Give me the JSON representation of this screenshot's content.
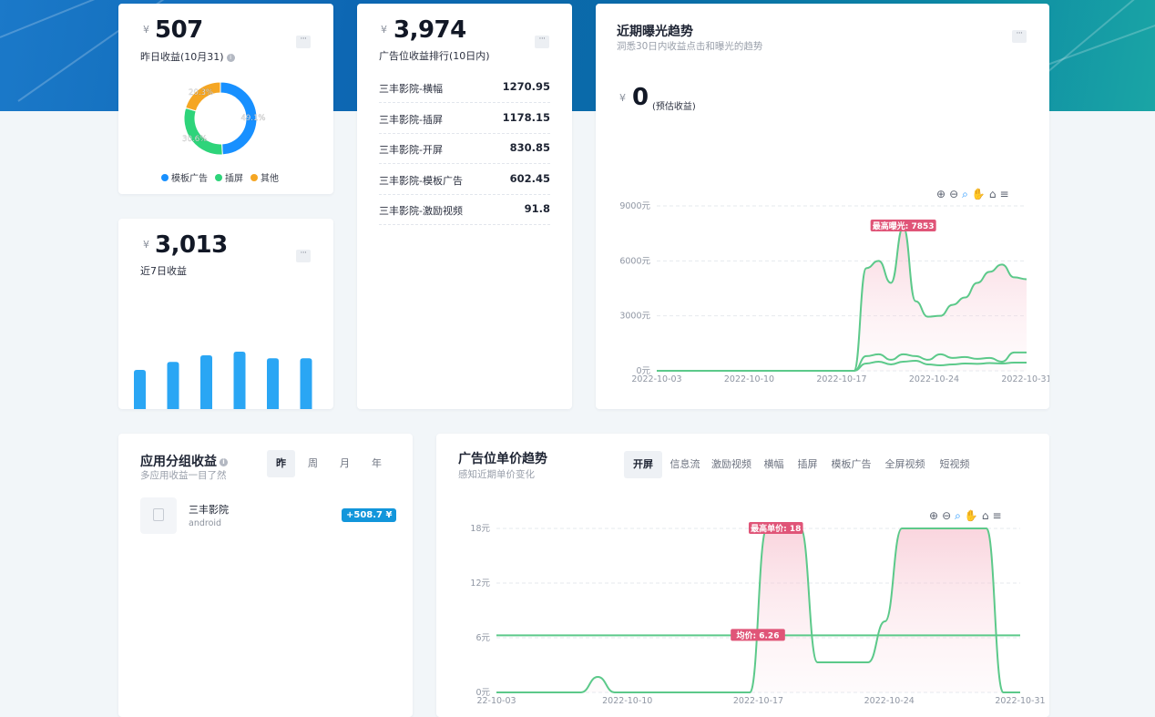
{
  "yesterday": {
    "currency": "¥",
    "amount": "507",
    "label": "昨日收益(10月31)",
    "more": "···",
    "donut": [
      {
        "name": "模板广告",
        "percent": 49.1,
        "label": "49.1%",
        "color": "#1890ff"
      },
      {
        "name": "插屏",
        "percent": 30.6,
        "label": "30.6%",
        "color": "#2ed47a"
      },
      {
        "name": "其他",
        "percent": 20.3,
        "label": "20.3%",
        "color": "#f5a623"
      }
    ]
  },
  "week": {
    "currency": "¥",
    "amount": "3,013",
    "label": "近7日收益",
    "more": "···",
    "bar_heights": [
      0.55,
      0.66,
      0.75,
      0.8,
      0.71,
      0.71
    ],
    "bar_color": "#2aa6f4"
  },
  "ranking": {
    "currency": "¥",
    "amount": "3,974",
    "label": "广告位收益排行(10日内)",
    "more": "···",
    "rows": [
      {
        "name": "三丰影院-横幅",
        "value": "1270.95"
      },
      {
        "name": "三丰影院-插屏",
        "value": "1178.15"
      },
      {
        "name": "三丰影院-开屏",
        "value": "830.85"
      },
      {
        "name": "三丰影院-模板广告",
        "value": "602.45"
      },
      {
        "name": "三丰影院-激励视频",
        "value": "91.8"
      }
    ]
  },
  "exposure": {
    "title": "近期曝光趋势",
    "desc": "洞悉30日内收益点击和曝光的趋势",
    "more": "···",
    "currency": "¥",
    "amount": "0",
    "amount_note": "(预估收益)",
    "toolbar": [
      "⊕",
      "⊖",
      "🔍",
      "✋",
      "⌂",
      "≡"
    ],
    "chart_data": {
      "type": "line",
      "yticks": [
        "9000元",
        "6000元",
        "3000元",
        "0元"
      ],
      "ylim": [
        0,
        9000
      ],
      "xticks": [
        "2022-10-03",
        "2022-10-10",
        "2022-10-17",
        "2022-10-24",
        "2022-10-31"
      ],
      "marker": "最高曝光: 7853",
      "series": [
        {
          "values": [
            0,
            0,
            0,
            0,
            0,
            0,
            0,
            0,
            0,
            0,
            0,
            0,
            0,
            0,
            0,
            0,
            0,
            5600,
            6000,
            4800,
            7853,
            3800,
            2950,
            3000,
            3600,
            4000,
            4800,
            5400,
            5800,
            5100,
            5000
          ]
        },
        {
          "values": [
            0,
            0,
            0,
            0,
            0,
            0,
            0,
            0,
            0,
            0,
            0,
            0,
            0,
            0,
            0,
            0,
            0,
            800,
            900,
            600,
            900,
            800,
            600,
            900,
            700,
            750,
            650,
            700,
            500,
            1000,
            1000
          ]
        },
        {
          "values": [
            0,
            0,
            0,
            0,
            0,
            0,
            0,
            0,
            0,
            0,
            0,
            0,
            0,
            0,
            0,
            0,
            0,
            400,
            500,
            350,
            500,
            550,
            350,
            300,
            350,
            400,
            380,
            420,
            400,
            450,
            450
          ]
        }
      ],
      "line_color": "#5cc98a"
    }
  },
  "app_group": {
    "title": "应用分组收益",
    "desc": "多应用收益一目了然",
    "tabs": [
      "昨",
      "周",
      "月",
      "年"
    ],
    "active_tab": 0,
    "app": {
      "name": "三丰影院",
      "platform": "android",
      "badge": "+508.7 ¥"
    }
  },
  "unit_price": {
    "title": "广告位单价趋势",
    "desc": "感知近期单价变化",
    "tabs": [
      "开屏",
      "信息流",
      "激励视频",
      "横幅",
      "插屏",
      "模板广告",
      "全屏视频",
      "短视频"
    ],
    "active_tab": 0,
    "toolbar": [
      "⊕",
      "⊖",
      "🔍",
      "✋",
      "⌂",
      "≡"
    ],
    "chart_data": {
      "type": "line",
      "yticks": [
        "18元",
        "12元",
        "6元",
        "0元"
      ],
      "ylim": [
        0,
        18
      ],
      "xticks": [
        "22-10-03",
        "2022-10-10",
        "2022-10-17",
        "2022-10-24",
        "2022-10-31"
      ],
      "marker_max": "最高单价: 18",
      "marker_avg": "均价: 6.26",
      "average": 6.26,
      "series": [
        {
          "values": [
            0,
            0,
            0,
            0,
            0,
            0,
            1.7,
            0,
            0,
            0,
            0,
            0,
            0,
            0,
            0,
            0,
            18,
            18,
            18,
            3.3,
            3.3,
            3.3,
            3.3,
            7.8,
            18,
            18,
            18,
            18,
            18,
            18,
            0,
            0
          ]
        }
      ],
      "line_color": "#5cc98a"
    }
  }
}
